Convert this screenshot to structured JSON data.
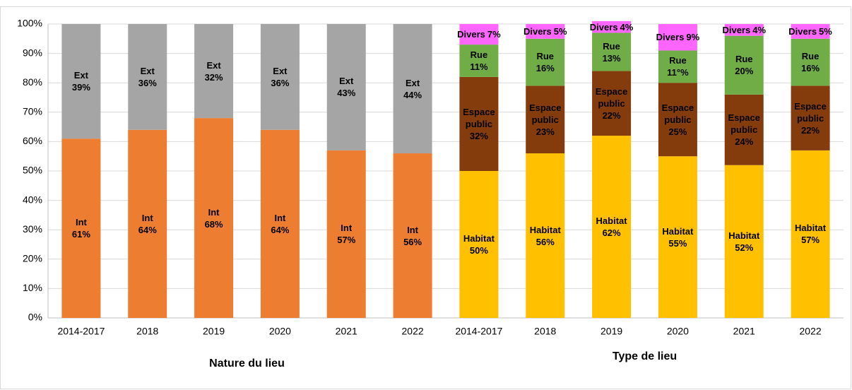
{
  "chart_data": {
    "type": "stacked_bar",
    "categories": [
      "2014-2017",
      "2018",
      "2019",
      "2020",
      "2021",
      "2022",
      "2014-2017",
      "2018",
      "2019",
      "2020",
      "2021",
      "2022"
    ],
    "group_labels": [
      "Nature du lieu",
      "Type de lieu"
    ],
    "series": [
      {
        "name": "Int",
        "color": "#ED7D31",
        "values": [
          61,
          64,
          68,
          64,
          57,
          56,
          null,
          null,
          null,
          null,
          null,
          null
        ],
        "value_labels": [
          "61%",
          "64%",
          "68%",
          "64%",
          "57%",
          "56%",
          null,
          null,
          null,
          null,
          null,
          null
        ]
      },
      {
        "name": "Ext",
        "color": "#A5A5A5",
        "values": [
          39,
          36,
          32,
          36,
          43,
          44,
          null,
          null,
          null,
          null,
          null,
          null
        ],
        "value_labels": [
          "39%",
          "36%",
          "32%",
          "36%",
          "43%",
          "44%",
          null,
          null,
          null,
          null,
          null,
          null
        ]
      },
      {
        "name": "Habitat",
        "color": "#FFC000",
        "values": [
          null,
          null,
          null,
          null,
          null,
          null,
          50,
          56,
          62,
          55,
          52,
          57
        ],
        "value_labels": [
          null,
          null,
          null,
          null,
          null,
          null,
          "50%",
          "56%",
          "62%",
          "55%",
          "52%",
          "57%"
        ]
      },
      {
        "name": "Espace public",
        "color": "#843C0C",
        "values": [
          null,
          null,
          null,
          null,
          null,
          null,
          32,
          23,
          22,
          25,
          24,
          22
        ],
        "value_labels": [
          null,
          null,
          null,
          null,
          null,
          null,
          "32%",
          "23%",
          "22%",
          "25%",
          "24%",
          "22%"
        ]
      },
      {
        "name": "Rue",
        "color": "#70AD47",
        "values": [
          null,
          null,
          null,
          null,
          null,
          null,
          11,
          16,
          13,
          11,
          20,
          16
        ],
        "value_labels": [
          null,
          null,
          null,
          null,
          null,
          null,
          "11%",
          "16%",
          "13%",
          "11°%",
          "20%",
          "16%"
        ]
      },
      {
        "name": "Divers",
        "color": "#FF66FF",
        "values": [
          null,
          null,
          null,
          null,
          null,
          null,
          7,
          5,
          4,
          9,
          4,
          5
        ],
        "value_labels": [
          null,
          null,
          null,
          null,
          null,
          null,
          "7%",
          "5%",
          "4%",
          "9%",
          "4%",
          "5%"
        ]
      }
    ],
    "ylim": [
      0,
      100
    ],
    "yticks": [
      {
        "value": 0,
        "label": "0%"
      },
      {
        "value": 10,
        "label": "10%"
      },
      {
        "value": 20,
        "label": "20%"
      },
      {
        "value": 30,
        "label": "30%"
      },
      {
        "value": 40,
        "label": "40%"
      },
      {
        "value": 50,
        "label": "50%"
      },
      {
        "value": 60,
        "label": "60%"
      },
      {
        "value": 70,
        "label": "70%"
      },
      {
        "value": 80,
        "label": "80%"
      },
      {
        "value": 90,
        "label": "90%"
      },
      {
        "value": 100,
        "label": "100%"
      }
    ],
    "grid": true
  }
}
